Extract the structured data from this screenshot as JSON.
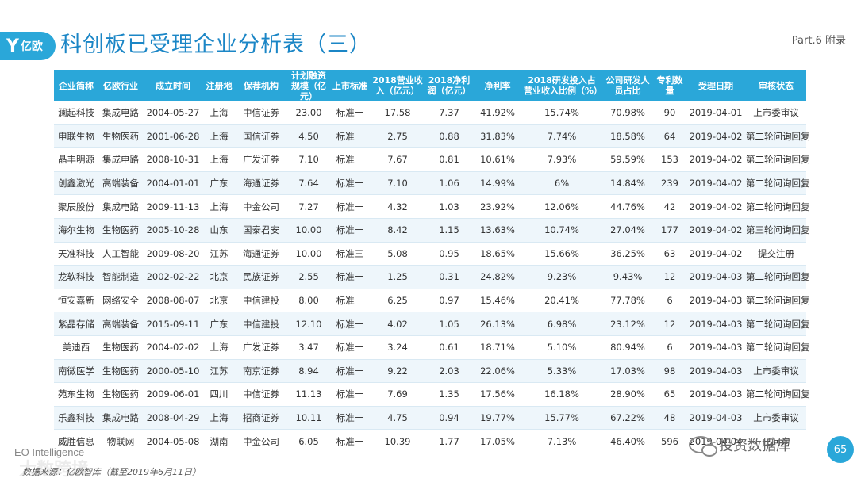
{
  "logo": {
    "mark": "Y",
    "name": "亿欧"
  },
  "header": {
    "title": "科创板已受理企业分析表（三）",
    "part": "Part.6 附录"
  },
  "table": {
    "columns": [
      "企业简称",
      "亿欧行业",
      "成立时间",
      "注册地",
      "保荐机构",
      "计划融资规模（亿元）",
      "上市标准",
      "2018营业收入（亿元）",
      "2018净利润（亿元）",
      "净利率",
      "2018研发投入占营业收入比例（%）",
      "公司研发人员占比",
      "专利数量",
      "受理日期",
      "审核状态"
    ],
    "rows": [
      [
        "澜起科技",
        "集成电路",
        "2004-05-27",
        "上海",
        "中信证券",
        "23.00",
        "标准一",
        "17.58",
        "7.37",
        "41.92%",
        "15.74%",
        "70.98%",
        "90",
        "2019-04-01",
        "上市委审议"
      ],
      [
        "申联生物",
        "生物医药",
        "2001-06-28",
        "上海",
        "国信证券",
        "4.50",
        "标准一",
        "2.75",
        "0.88",
        "31.83%",
        "7.74%",
        "18.58%",
        "64",
        "2019-04-02",
        "第二轮问询回复"
      ],
      [
        "晶丰明源",
        "集成电路",
        "2008-10-31",
        "上海",
        "广发证券",
        "7.10",
        "标准一",
        "7.67",
        "0.81",
        "10.61%",
        "7.93%",
        "59.59%",
        "153",
        "2019-04-02",
        "第二轮问询回复"
      ],
      [
        "创鑫激光",
        "高端装备",
        "2004-01-01",
        "广东",
        "海通证券",
        "7.64",
        "标准一",
        "7.10",
        "1.06",
        "14.99%",
        "6%",
        "14.84%",
        "239",
        "2019-04-02",
        "第二轮问询回复"
      ],
      [
        "聚辰股份",
        "集成电路",
        "2009-11-13",
        "上海",
        "中金公司",
        "7.27",
        "标准一",
        "4.32",
        "1.03",
        "23.92%",
        "12.06%",
        "44.76%",
        "42",
        "2019-04-02",
        "第二轮问询回复"
      ],
      [
        "海尔生物",
        "生物医药",
        "2005-10-28",
        "山东",
        "国泰君安",
        "10.00",
        "标准一",
        "8.42",
        "1.15",
        "13.63%",
        "10.74%",
        "27.04%",
        "177",
        "2019-04-02",
        "第三轮问询回复"
      ],
      [
        "天准科技",
        "人工智能",
        "2009-08-20",
        "江苏",
        "海通证券",
        "10.00",
        "标准三",
        "5.08",
        "0.95",
        "18.65%",
        "15.66%",
        "36.25%",
        "63",
        "2019-04-02",
        "提交注册"
      ],
      [
        "龙软科技",
        "智能制造",
        "2002-02-22",
        "北京",
        "民族证券",
        "2.55",
        "标准一",
        "1.25",
        "0.31",
        "24.82%",
        "9.23%",
        "9.43%",
        "12",
        "2019-04-03",
        "第二轮问询回复"
      ],
      [
        "恒安嘉新",
        "网络安全",
        "2008-08-07",
        "北京",
        "中信建投",
        "8.00",
        "标准一",
        "6.25",
        "0.97",
        "15.46%",
        "20.41%",
        "77.78%",
        "6",
        "2019-04-03",
        "第二轮问询回复"
      ],
      [
        "紫晶存储",
        "高端装备",
        "2015-09-11",
        "广东",
        "中信建投",
        "12.10",
        "标准一",
        "4.02",
        "1.05",
        "26.13%",
        "6.98%",
        "23.12%",
        "12",
        "2019-04-03",
        "第二轮问询回复"
      ],
      [
        "美迪西",
        "生物医药",
        "2004-02-02",
        "上海",
        "广发证券",
        "3.47",
        "标准一",
        "3.24",
        "0.61",
        "18.71%",
        "5.10%",
        "80.94%",
        "6",
        "2019-04-03",
        "第二轮问询回复"
      ],
      [
        "南微医学",
        "生物医药",
        "2000-05-10",
        "江苏",
        "南京证券",
        "8.94",
        "标准一",
        "9.22",
        "2.03",
        "22.06%",
        "5.33%",
        "17.03%",
        "98",
        "2019-04-03",
        "上市委审议"
      ],
      [
        "苑东生物",
        "生物医药",
        "2009-06-01",
        "四川",
        "中信证券",
        "11.13",
        "标准一",
        "7.69",
        "1.35",
        "17.56%",
        "16.18%",
        "28.90%",
        "65",
        "2019-04-03",
        "第二轮问询回复"
      ],
      [
        "乐鑫科技",
        "集成电路",
        "2008-04-29",
        "上海",
        "招商证券",
        "10.11",
        "标准一",
        "4.75",
        "0.94",
        "19.77%",
        "15.77%",
        "67.22%",
        "48",
        "2019-04-03",
        "上市委审议"
      ],
      [
        "威胜信息",
        "物联网",
        "2004-05-08",
        "湖南",
        "中金公司",
        "6.05",
        "标准一",
        "10.39",
        "1.77",
        "17.05%",
        "7.13%",
        "46.40%",
        "596",
        "2019-04-04",
        "已问询"
      ]
    ]
  },
  "footer": {
    "brand": "EO Intelligence",
    "source": "数据来源：亿欧智库（截至2019年6月11日）",
    "watermark_left": "大数跨境",
    "watermark_right": "投资数据库",
    "page": "65"
  }
}
